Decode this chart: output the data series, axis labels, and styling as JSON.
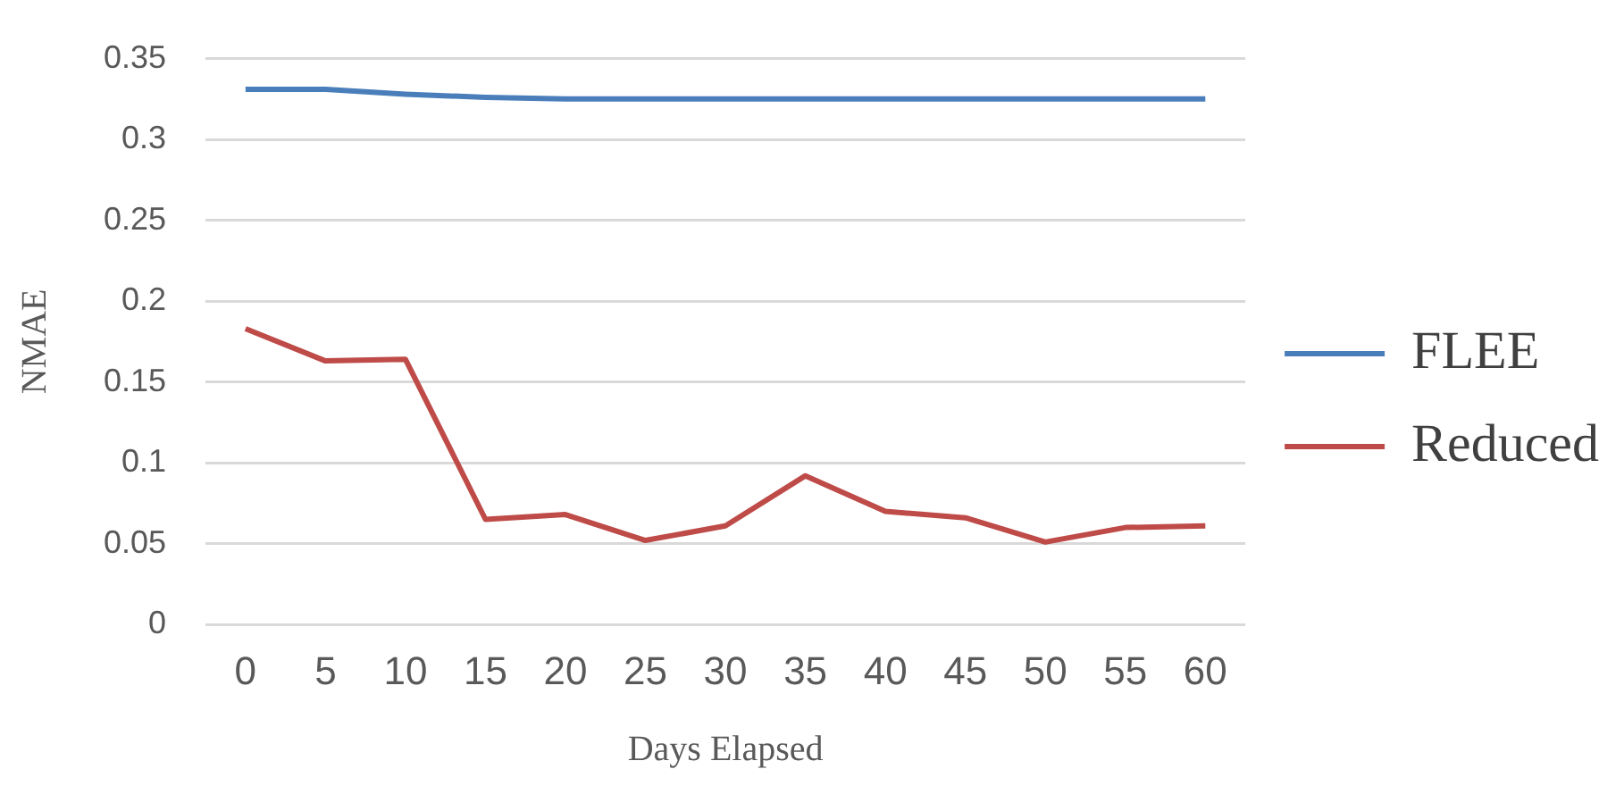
{
  "chart_data": {
    "type": "line",
    "xlabel": "Days Elapsed",
    "ylabel": "NMAE",
    "categories": [
      "0",
      "5",
      "10",
      "15",
      "20",
      "25",
      "30",
      "35",
      "40",
      "45",
      "50",
      "55",
      "60"
    ],
    "series": [
      {
        "name": "FLEE",
        "color": "#4a7ebb",
        "values": [
          0.331,
          0.331,
          0.328,
          0.326,
          0.325,
          0.325,
          0.325,
          0.325,
          0.325,
          0.325,
          0.325,
          0.325,
          0.325
        ]
      },
      {
        "name": "Reduced",
        "color": "#be4b48",
        "values": [
          0.183,
          0.163,
          0.164,
          0.065,
          0.068,
          0.052,
          0.061,
          0.092,
          0.07,
          0.066,
          0.051,
          0.06,
          0.061
        ]
      }
    ],
    "ylim": [
      0,
      0.35
    ],
    "yticks": [
      0,
      0.05,
      0.1,
      0.15,
      0.2,
      0.25,
      0.3,
      0.35
    ],
    "grid": "y",
    "legend": "right",
    "marker": "none",
    "line_style": "solid"
  }
}
